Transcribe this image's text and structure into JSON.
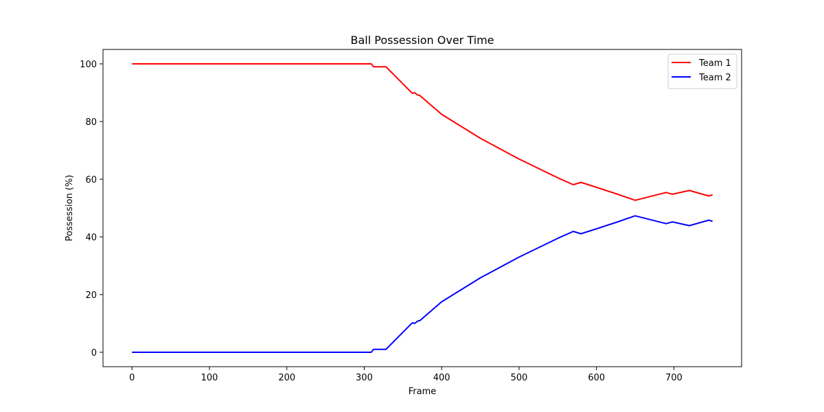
{
  "chart_data": {
    "type": "line",
    "title": "Ball Possession Over Time",
    "xlabel": "Frame",
    "ylabel": "Possession (%)",
    "xlim": [
      -37.5,
      787.5
    ],
    "ylim": [
      -5,
      105
    ],
    "xticks": [
      0,
      100,
      200,
      300,
      400,
      500,
      600,
      700
    ],
    "yticks": [
      0,
      20,
      40,
      60,
      80,
      100
    ],
    "grid": false,
    "legend_position": "top-right",
    "series": [
      {
        "name": "Team 1",
        "color": "#ff0000",
        "points": [
          [
            0,
            100
          ],
          [
            309,
            100
          ],
          [
            312,
            99
          ],
          [
            328,
            99
          ],
          [
            362,
            89.8
          ],
          [
            365,
            90
          ],
          [
            369,
            89.2
          ],
          [
            372,
            89
          ],
          [
            400,
            82.5
          ],
          [
            450,
            74.2
          ],
          [
            500,
            67
          ],
          [
            550,
            60.5
          ],
          [
            570,
            58.1
          ],
          [
            580,
            58.9
          ],
          [
            600,
            57.2
          ],
          [
            625,
            55
          ],
          [
            650,
            52.7
          ],
          [
            690,
            55.4
          ],
          [
            698,
            54.8
          ],
          [
            720,
            56.1
          ],
          [
            745,
            54.2
          ],
          [
            750,
            54.6
          ]
        ]
      },
      {
        "name": "Team 2",
        "color": "#0000ff",
        "points": [
          [
            0,
            0
          ],
          [
            309,
            0
          ],
          [
            312,
            1
          ],
          [
            328,
            1
          ],
          [
            362,
            10.2
          ],
          [
            365,
            10
          ],
          [
            369,
            10.8
          ],
          [
            372,
            11
          ],
          [
            400,
            17.5
          ],
          [
            450,
            25.8
          ],
          [
            500,
            33
          ],
          [
            550,
            39.5
          ],
          [
            570,
            41.9
          ],
          [
            580,
            41.1
          ],
          [
            600,
            42.8
          ],
          [
            625,
            45
          ],
          [
            650,
            47.3
          ],
          [
            690,
            44.6
          ],
          [
            698,
            45.2
          ],
          [
            720,
            43.9
          ],
          [
            745,
            45.8
          ],
          [
            750,
            45.4
          ]
        ]
      }
    ]
  }
}
